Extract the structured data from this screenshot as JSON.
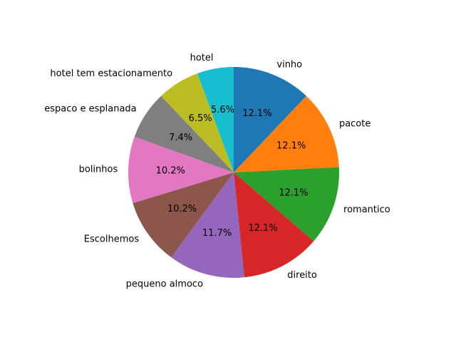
{
  "chart_data": {
    "type": "pie",
    "title": "",
    "start_angle_deg": 90,
    "direction": "clockwise",
    "slices": [
      {
        "label": "vinho",
        "value": 12.1,
        "pct_label": "12.1%",
        "color": "#1f77b4"
      },
      {
        "label": "pacote",
        "value": 12.1,
        "pct_label": "12.1%",
        "color": "#ff7f0e"
      },
      {
        "label": "romantico",
        "value": 12.1,
        "pct_label": "12.1%",
        "color": "#2ca02c"
      },
      {
        "label": "direito",
        "value": 12.1,
        "pct_label": "12.1%",
        "color": "#d62728"
      },
      {
        "label": "pequeno almoco",
        "value": 11.7,
        "pct_label": "11.7%",
        "color": "#9467bd"
      },
      {
        "label": "Escolhemos",
        "value": 10.2,
        "pct_label": "10.2%",
        "color": "#8c564b"
      },
      {
        "label": "bolinhos",
        "value": 10.2,
        "pct_label": "10.2%",
        "color": "#e377c2"
      },
      {
        "label": "espaco e esplanada",
        "value": 7.4,
        "pct_label": "7.4%",
        "color": "#7f7f7f"
      },
      {
        "label": "hotel tem estacionamento",
        "value": 6.5,
        "pct_label": "6.5%",
        "color": "#bcbd22"
      },
      {
        "label": "hotel",
        "value": 5.6,
        "pct_label": "5.6%",
        "color": "#17becf"
      }
    ]
  }
}
